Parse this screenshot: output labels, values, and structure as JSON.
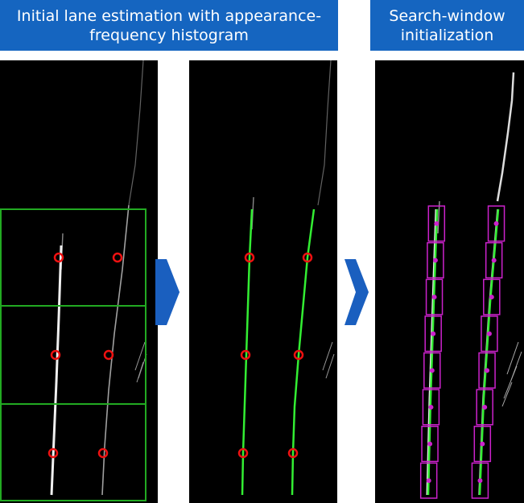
{
  "headers": {
    "left": "Initial lane estimation with appearance-frequency histogram",
    "right": "Search-window initialization"
  },
  "colors": {
    "header_bg": "#1565c0",
    "header_text": "#ffffff",
    "panel_bg": "#000000",
    "grid_green": "#22aa22",
    "lane_fit_green": "#33ee33",
    "marker_red": "#ee1111",
    "window_magenta": "#cc22cc",
    "arrow_blue": "#1a5fbf"
  },
  "icons": [
    "right-arrow-icon",
    "right-arrow-icon"
  ]
}
